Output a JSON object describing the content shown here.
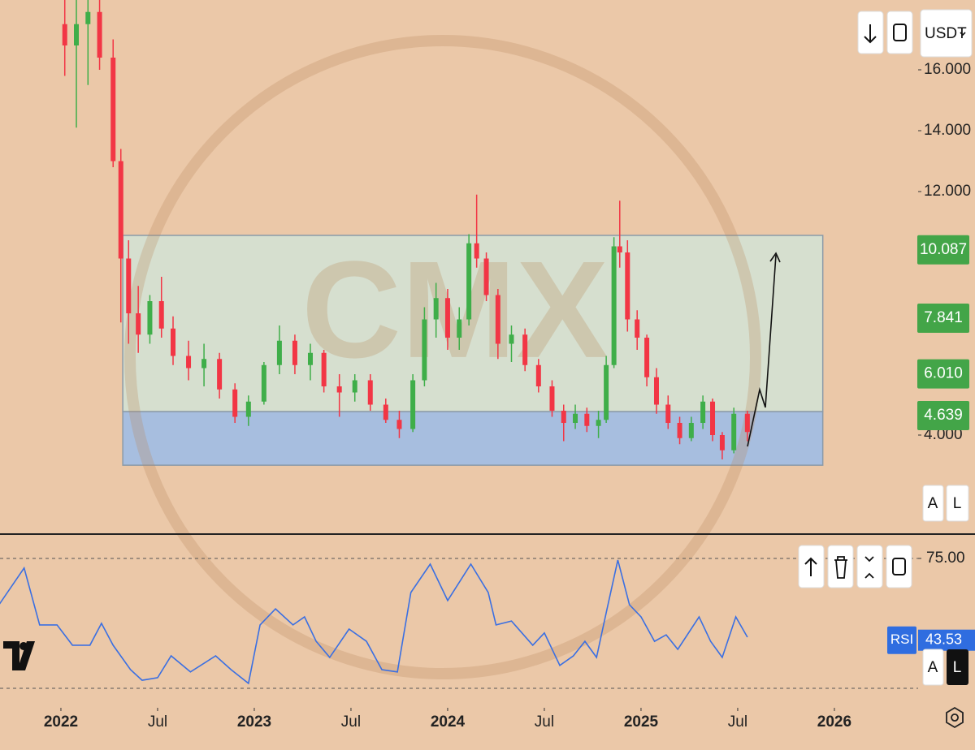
{
  "chart_data": [
    {
      "type": "candlestick",
      "watermark": "CMX",
      "x": [
        2022.02,
        2022.08,
        2022.14,
        2022.2,
        2022.27,
        2022.31,
        2022.35,
        2022.4,
        2022.46,
        2022.52,
        2022.58,
        2022.66,
        2022.74,
        2022.82,
        2022.9,
        2022.97,
        2023.05,
        2023.13,
        2023.21,
        2023.29,
        2023.36,
        2023.44,
        2023.52,
        2023.6,
        2023.68,
        2023.75,
        2023.82,
        2023.88,
        2023.94,
        2024.0,
        2024.06,
        2024.11,
        2024.15,
        2024.2,
        2024.26,
        2024.33,
        2024.4,
        2024.47,
        2024.54,
        2024.6,
        2024.66,
        2024.72,
        2024.78,
        2024.82,
        2024.86,
        2024.89,
        2024.93,
        2024.98,
        2025.03,
        2025.08,
        2025.14,
        2025.2,
        2025.26,
        2025.32,
        2025.37,
        2025.42,
        2025.48,
        2025.55
      ],
      "open": [
        17.5,
        16.8,
        17.5,
        17.9,
        16.4,
        13.0,
        9.8,
        8.0,
        7.3,
        8.4,
        7.5,
        6.6,
        6.2,
        6.5,
        5.5,
        4.6,
        5.1,
        6.3,
        7.1,
        6.3,
        6.7,
        5.6,
        5.4,
        5.8,
        5.0,
        4.5,
        4.2,
        5.8,
        7.8,
        8.5,
        7.2,
        7.8,
        10.3,
        9.8,
        8.6,
        7.0,
        7.3,
        6.3,
        5.6,
        4.8,
        4.4,
        4.7,
        4.3,
        4.5,
        6.3,
        10.2,
        10.0,
        7.8,
        7.2,
        5.9,
        5.0,
        4.4,
        3.9,
        4.4,
        5.1,
        4.0,
        3.5,
        4.7
      ],
      "high": [
        18.5,
        18.5,
        18.5,
        18.5,
        17.0,
        13.4,
        10.4,
        8.9,
        8.6,
        9.2,
        7.9,
        7.1,
        7.0,
        6.7,
        5.7,
        5.3,
        6.4,
        7.6,
        7.3,
        7.0,
        6.8,
        6.0,
        6.0,
        6.0,
        5.2,
        4.8,
        6.0,
        8.2,
        9.0,
        8.8,
        8.2,
        10.6,
        11.9,
        10.0,
        8.8,
        7.6,
        7.5,
        6.5,
        5.8,
        5.0,
        5.0,
        4.9,
        4.8,
        6.6,
        10.5,
        11.7,
        10.4,
        8.1,
        7.3,
        6.2,
        5.3,
        4.6,
        4.6,
        5.3,
        5.2,
        4.1,
        4.9,
        4.8
      ],
      "low": [
        15.8,
        14.1,
        15.5,
        16.0,
        12.8,
        7.7,
        7.0,
        6.7,
        7.0,
        7.2,
        6.3,
        5.8,
        5.6,
        5.2,
        4.4,
        4.3,
        5.0,
        6.0,
        6.0,
        5.8,
        5.4,
        4.6,
        5.1,
        4.8,
        4.4,
        3.9,
        4.1,
        5.6,
        7.2,
        6.8,
        6.8,
        7.6,
        9.5,
        8.4,
        6.5,
        6.4,
        6.1,
        5.4,
        4.6,
        3.8,
        4.2,
        4.1,
        3.9,
        4.4,
        6.2,
        9.5,
        7.4,
        6.8,
        5.6,
        4.7,
        4.2,
        3.7,
        3.8,
        4.2,
        3.8,
        3.2,
        3.4,
        3.8
      ],
      "close": [
        16.8,
        17.5,
        17.9,
        16.4,
        13.0,
        9.8,
        8.0,
        7.3,
        8.4,
        7.5,
        6.6,
        6.2,
        6.5,
        5.5,
        4.6,
        5.1,
        6.3,
        7.1,
        6.3,
        6.7,
        5.6,
        5.4,
        5.8,
        5.0,
        4.5,
        4.2,
        5.8,
        7.8,
        8.5,
        7.2,
        7.8,
        10.3,
        9.8,
        8.6,
        7.0,
        7.3,
        6.3,
        5.6,
        4.8,
        4.4,
        4.7,
        4.3,
        4.5,
        6.3,
        10.2,
        10.0,
        7.8,
        7.2,
        5.9,
        5.0,
        4.4,
        3.9,
        4.4,
        5.1,
        4.0,
        3.5,
        4.7,
        4.1
      ],
      "up_color": "#3fae49",
      "down_color": "#f23645",
      "xlim": [
        2021.685,
        2026.433
      ],
      "xticks": [
        {
          "value": 2022,
          "label": "2022"
        },
        {
          "value": 2022.5,
          "label": "Jul"
        },
        {
          "value": 2023,
          "label": "2023"
        },
        {
          "value": 2023.5,
          "label": "Jul"
        },
        {
          "value": 2024,
          "label": "2024"
        },
        {
          "value": 2024.5,
          "label": "Jul"
        },
        {
          "value": 2025,
          "label": "2025"
        },
        {
          "value": 2025.5,
          "label": "Jul"
        },
        {
          "value": 2026,
          "label": "2026"
        }
      ],
      "ylim": [
        0.747,
        18.293
      ],
      "yticks": [
        {
          "value": 16,
          "label": "16.000"
        },
        {
          "value": 14,
          "label": "14.000"
        },
        {
          "value": 12,
          "label": "12.000"
        },
        {
          "value": 4,
          "label": "4.000"
        }
      ],
      "zones": [
        {
          "from": 4.77,
          "to": 10.56,
          "x": [
            2022.32,
            2025.94
          ],
          "color": "rgba(205,232,222,0.72)"
        },
        {
          "from": 3.01,
          "to": 4.77,
          "x": [
            2022.32,
            2025.94
          ],
          "color": "rgba(150,188,236,0.8)"
        }
      ],
      "price_labels": [
        10.087,
        7.841,
        {
          "value": 6.01,
          "label": "6.010"
        },
        4.639
      ],
      "price_label_color": "#43a548"
    },
    {
      "type": "line",
      "x": [
        2021.68,
        2021.81,
        2021.89,
        2021.98,
        2022.06,
        2022.15,
        2022.21,
        2022.27,
        2022.36,
        2022.42,
        2022.5,
        2022.57,
        2022.67,
        2022.8,
        2022.88,
        2022.97,
        2023.03,
        2023.11,
        2023.2,
        2023.26,
        2023.32,
        2023.39,
        2023.49,
        2023.58,
        2023.66,
        2023.74,
        2023.81,
        2023.91,
        2024.0,
        2024.12,
        2024.21,
        2024.25,
        2024.33,
        2024.44,
        2024.5,
        2024.58,
        2024.65,
        2024.71,
        2024.77,
        2024.82,
        2024.88,
        2024.94,
        2025.0,
        2025.07,
        2025.13,
        2025.19,
        2025.3,
        2025.36,
        2025.42,
        2025.49,
        2025.55
      ],
      "series": [
        {
          "name": "RSI",
          "color": "#3a6fe2",
          "values": [
            57.2,
            71.3,
            49.4,
            49.4,
            41.6,
            41.6,
            50.0,
            41.6,
            32.2,
            28.1,
            29.1,
            37.5,
            31.3,
            37.5,
            32.2,
            26.9,
            49.4,
            55.6,
            49.4,
            52.5,
            43.1,
            36.9,
            47.8,
            43.1,
            32.2,
            31.3,
            61.9,
            72.8,
            58.8,
            72.8,
            61.9,
            49.4,
            50.9,
            41.6,
            46.3,
            33.8,
            37.5,
            43.1,
            36.9,
            54.1,
            74.4,
            57.2,
            52.5,
            43.1,
            45.6,
            40.0,
            52.5,
            43.1,
            36.9,
            52.5,
            44.7
          ]
        }
      ],
      "current": 43.53,
      "ylim": [
        18.125,
        83.75
      ],
      "yticks": [
        {
          "value": 75,
          "label": "75.00"
        }
      ],
      "levels": [
        75,
        25
      ]
    }
  ],
  "ui": {
    "currency": "USDT",
    "auto_button": "A",
    "log_button": "L"
  }
}
